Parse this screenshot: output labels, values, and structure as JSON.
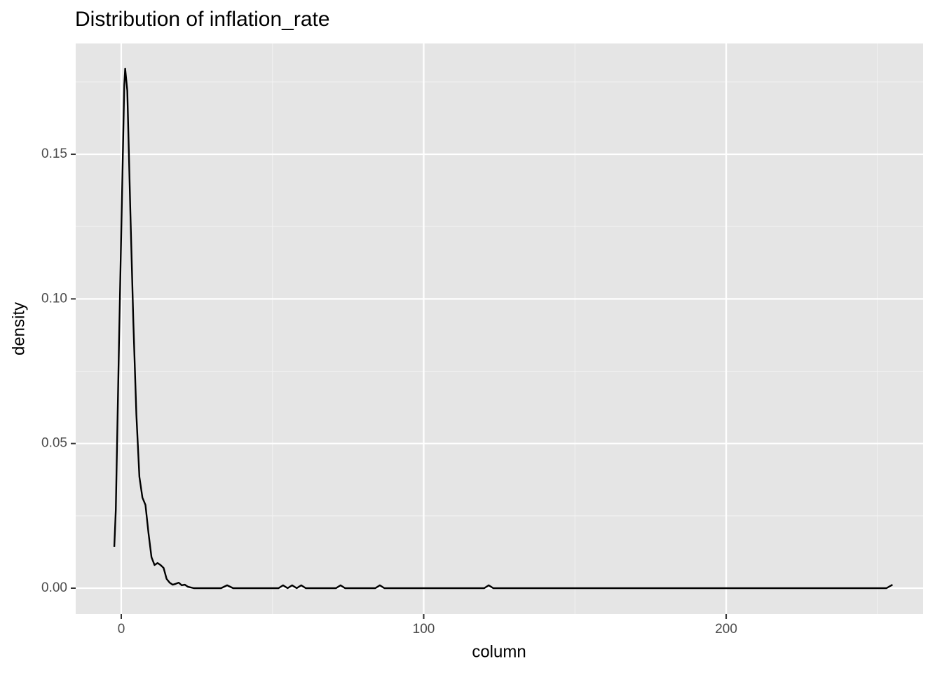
{
  "chart_data": {
    "type": "line",
    "title": "Distribution of inflation_rate",
    "x_label": "column",
    "y_label": "density",
    "x": [
      -2.3,
      -1.8,
      -0.7,
      1,
      1.3,
      2,
      3,
      4,
      5,
      6,
      7,
      8,
      9,
      10,
      11,
      12,
      13,
      14,
      15,
      16,
      17,
      18,
      19,
      20,
      21,
      22,
      24,
      33,
      35,
      37,
      52,
      53.5,
      55,
      56.5,
      58,
      59.5,
      61,
      71,
      72.5,
      74,
      84,
      85.5,
      87,
      120,
      121.5,
      123,
      253,
      255
    ],
    "values": [
      0.0143,
      0.027,
      0.087,
      0.174,
      0.1796,
      0.172,
      0.1306,
      0.092,
      0.06,
      0.0385,
      0.0313,
      0.0288,
      0.0191,
      0.0107,
      0.008,
      0.0087,
      0.008,
      0.007,
      0.0032,
      0.0019,
      0.0012,
      0.0015,
      0.0019,
      0.001,
      0.0012,
      0.0005,
      0,
      0,
      0.001,
      0,
      0,
      0.001,
      0,
      0.001,
      0,
      0.001,
      0,
      0,
      0.001,
      0,
      0,
      0.001,
      0,
      0,
      0.001,
      0,
      0,
      0.0012
    ],
    "color": "#000000",
    "xlim": [
      -15.06,
      265.1
    ],
    "ylim": [
      -0.00897,
      0.1883
    ],
    "xticks": [
      0,
      100,
      200
    ],
    "yticks": [
      {
        "value": 0,
        "label": "0.00"
      },
      0.05,
      {
        "value": 0.1,
        "label": "0.10"
      },
      0.15
    ],
    "x_minor_breaks": [
      50,
      150,
      250
    ],
    "y_minor_breaks": [
      0.025,
      0.075,
      0.125,
      0.175
    ],
    "grid": true
  }
}
